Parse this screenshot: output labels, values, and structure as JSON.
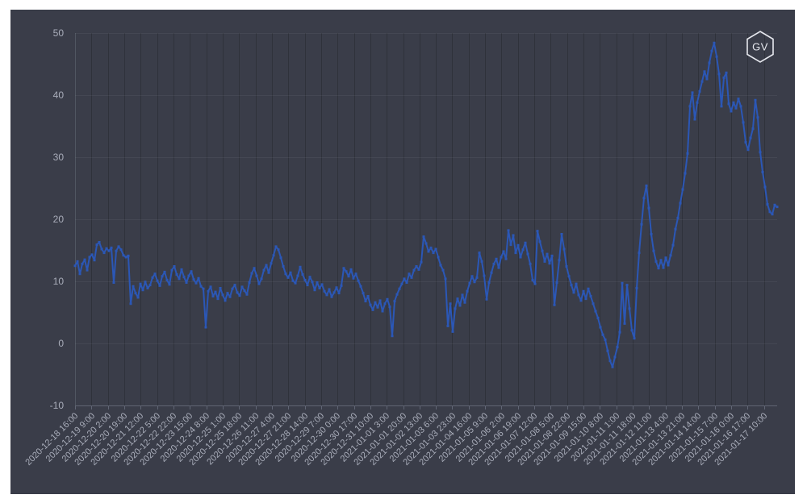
{
  "page": {
    "background": "#ffffff",
    "panel_background": "#3a3d49"
  },
  "logo": {
    "text": "GV",
    "color": "#e6e8ee"
  },
  "chart_data": {
    "type": "line",
    "title": "",
    "xlabel": "",
    "ylabel": "",
    "legend": null,
    "grid": true,
    "line_color": "#2b57b6",
    "tick_label_color": "#a9adba",
    "ylim": [
      -10,
      50
    ],
    "y_ticks": [
      50,
      40,
      30,
      20,
      10,
      0,
      -10
    ],
    "x_start": "2020-12-18 16:00",
    "x_end": "2021-01-17 12:00",
    "x_tick_interval_hours": 17,
    "x_tick_labels": [
      "2020-12-18 16:00",
      "2020-12-19 9:00",
      "2020-12-20 2:00",
      "2020-12-20 19:00",
      "2020-12-21 12:00",
      "2020-12-22 5:00",
      "2020-12-22 22:00",
      "2020-12-23 15:00",
      "2020-12-24 8:00",
      "2020-12-25 1:00",
      "2020-12-25 18:00",
      "2020-12-26 11:00",
      "2020-12-27 4:00",
      "2020-12-27 21:00",
      "2020-12-28 14:00",
      "2020-12-29 7:00",
      "2020-12-30 0:00",
      "2020-12-30 17:00",
      "2020-12-31 10:00",
      "2021-01-01 3:00",
      "2021-01-01 20:00",
      "2021-01-02 13:00",
      "2021-01-03 6:00",
      "2021-01-03 23:00",
      "2021-01-04 16:00",
      "2021-01-05 9:00",
      "2021-01-06 2:00",
      "2021-01-06 19:00",
      "2021-01-07 12:00",
      "2021-01-08 5:00",
      "2021-01-08 22:00",
      "2021-01-09 15:00",
      "2021-01-10 8:00",
      "2021-01-11 1:00",
      "2021-01-11 18:00",
      "2021-01-12 11:00",
      "2021-01-13 4:00",
      "2021-01-13 21:00",
      "2021-01-14 14:00",
      "2021-01-15 7:00",
      "2021-01-16 0:00",
      "2021-01-16 17:00",
      "2021-01-17 10:00"
    ],
    "values": [
      12.5,
      13.2,
      11.2,
      12.8,
      13.5,
      11.8,
      13.9,
      14.3,
      13.4,
      15.9,
      16.3,
      15.2,
      14.6,
      15.3,
      14.9,
      15.4,
      9.8,
      14.9,
      15.6,
      15.1,
      14.2,
      13.9,
      14.1,
      6.4,
      9.2,
      8.1,
      7.4,
      9.6,
      8.6,
      9.9,
      8.9,
      9.4,
      10.6,
      11.2,
      10.1,
      9.3,
      10.8,
      11.5,
      10.2,
      9.5,
      11.8,
      12.4,
      11.1,
      10.4,
      11.9,
      10.7,
      9.8,
      10.9,
      11.6,
      10.3,
      9.7,
      10.5,
      9.2,
      8.8,
      2.6,
      8.4,
      9.1,
      7.6,
      8.3,
      7.2,
      8.9,
      7.8,
      6.9,
      8.1,
      7.5,
      8.8,
      9.4,
      8.2,
      7.7,
      9.1,
      8.5,
      7.9,
      9.8,
      11.3,
      12.1,
      10.9,
      9.6,
      10.4,
      11.8,
      12.6,
      11.4,
      12.9,
      14.2,
      15.6,
      15.1,
      13.8,
      12.4,
      11.2,
      10.6,
      11.4,
      10.1,
      9.7,
      10.9,
      12.3,
      11.1,
      10.2,
      9.4,
      10.7,
      9.9,
      8.6,
      9.8,
      8.9,
      9.5,
      8.4,
      7.8,
      8.7,
      7.5,
      8.2,
      9.0,
      8.1,
      9.3,
      12.1,
      11.6,
      10.8,
      11.9,
      10.5,
      11.2,
      10.1,
      9.2,
      8.1,
      6.8,
      7.6,
      6.2,
      5.4,
      6.6,
      5.8,
      6.9,
      5.2,
      6.4,
      7.1,
      5.9,
      1.2,
      6.8,
      7.9,
      8.8,
      9.6,
      10.4,
      9.8,
      11.2,
      10.6,
      11.8,
      12.4,
      11.9,
      13.1,
      17.2,
      16.1,
      14.8,
      15.4,
      14.6,
      15.2,
      13.9,
      12.6,
      11.8,
      10.4,
      2.8,
      6.4,
      1.9,
      5.6,
      7.2,
      6.1,
      7.8,
      6.6,
      8.4,
      9.7,
      10.8,
      9.9,
      10.6,
      14.6,
      13.2,
      10.9,
      7.1,
      9.8,
      11.4,
      12.8,
      13.6,
      12.2,
      13.9,
      14.8,
      13.6,
      18.2,
      15.9,
      17.4,
      14.6,
      15.8,
      13.9,
      15.1,
      16.2,
      14.4,
      12.8,
      10.2,
      9.6,
      18.1,
      16.4,
      14.9,
      13.2,
      14.4,
      12.9,
      14.1,
      6.2,
      9.8,
      13.4,
      17.6,
      15.2,
      12.4,
      10.8,
      9.4,
      8.2,
      9.6,
      7.8,
      6.9,
      8.4,
      7.2,
      8.8,
      7.6,
      6.4,
      5.2,
      4.1,
      2.6,
      1.4,
      0.6,
      -1.2,
      -2.8,
      -3.8,
      -2.2,
      -0.6,
      1.8,
      9.7,
      3.2,
      9.4,
      5.6,
      2.1,
      0.8,
      8.9,
      14.6,
      19.2,
      23.4,
      25.4,
      21.8,
      17.6,
      14.9,
      13.2,
      12.1,
      13.4,
      12.2,
      13.8,
      12.6,
      14.2,
      15.8,
      18.4,
      20.2,
      22.6,
      24.8,
      27.4,
      30.6,
      38.2,
      40.4,
      36.1,
      38.8,
      40.6,
      42.2,
      43.8,
      42.6,
      45.2,
      47.1,
      48.4,
      46.2,
      43.4,
      38.2,
      42.8,
      43.6,
      38.6,
      37.4,
      38.8,
      37.9,
      39.4,
      38.2,
      35.6,
      32.4,
      31.2,
      33.1,
      34.6,
      39.2,
      36.4,
      30.8,
      27.6,
      25.2,
      22.4,
      21.2,
      20.8,
      22.3,
      22.0
    ]
  }
}
